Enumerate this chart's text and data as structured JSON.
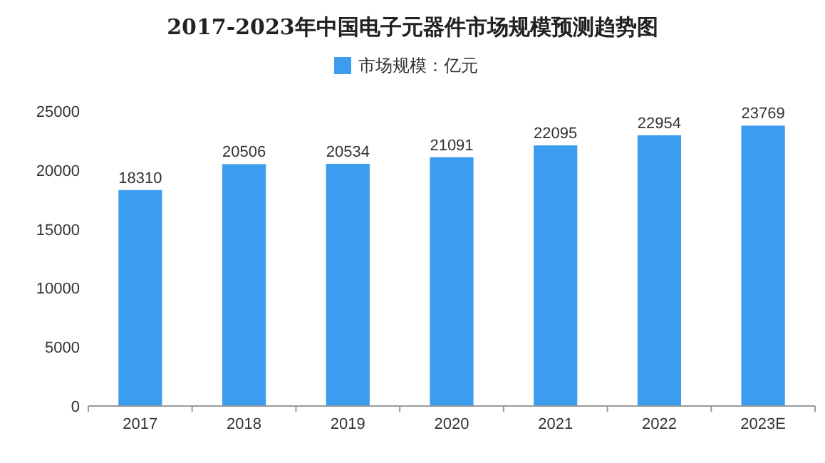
{
  "chart_data": {
    "type": "bar",
    "title": "2017-2023年中国电子元器件市场规模预测趋势图",
    "categories": [
      "2017",
      "2018",
      "2019",
      "2020",
      "2021",
      "2022",
      "2023E"
    ],
    "series": [
      {
        "name": "市场规模：亿元",
        "color": "#3c9cf0",
        "values": [
          18310,
          20506,
          20534,
          21091,
          22095,
          22954,
          23769
        ]
      }
    ],
    "ylim": [
      0,
      25000
    ],
    "yticks": [
      0,
      5000,
      10000,
      15000,
      20000,
      25000
    ],
    "data_labels": true,
    "legend": "top",
    "grid": false
  }
}
